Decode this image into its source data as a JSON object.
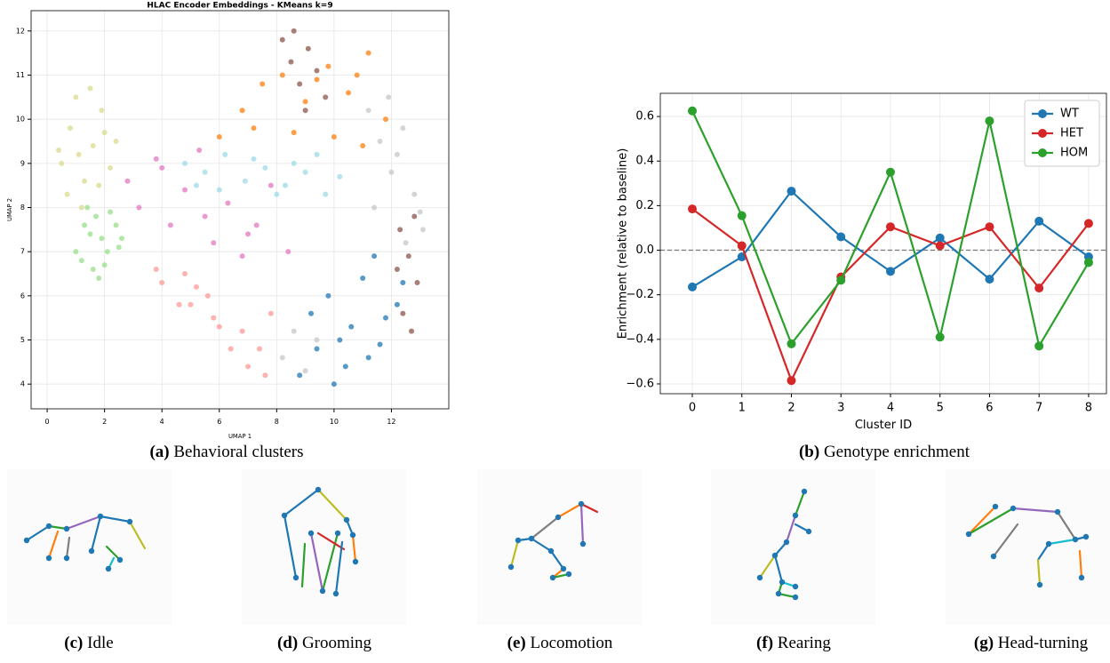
{
  "chart_data": [
    {
      "type": "scatter",
      "title": "HLAC Encoder Embeddings - KMeans k=9",
      "xlabel": "UMAP 1",
      "ylabel": "UMAP 2",
      "xlim": [
        -0.56,
        14.0
      ],
      "ylim": [
        3.44,
        12.46
      ],
      "xticks": [
        0,
        2,
        4,
        6,
        8,
        10,
        12
      ],
      "yticks": [
        4,
        5,
        6,
        7,
        8,
        9,
        10,
        11,
        12
      ],
      "grid": true,
      "series": [
        {
          "color": "#dbdb8d",
          "x": [
            0.5,
            0.8,
            1.0,
            1.3,
            1.6,
            1.9,
            2.2,
            0.7,
            1.1,
            1.5,
            2.0,
            0.4,
            1.2,
            1.8,
            2.4
          ],
          "y": [
            9.0,
            9.8,
            10.5,
            8.6,
            9.4,
            10.2,
            8.9,
            8.3,
            9.2,
            10.7,
            9.7,
            9.3,
            8.0,
            8.5,
            9.5
          ]
        },
        {
          "color": "#98df8a",
          "x": [
            1.0,
            1.3,
            1.6,
            1.9,
            2.2,
            2.5,
            1.2,
            1.5,
            1.8,
            2.1,
            2.4,
            1.4,
            1.7,
            2.0,
            2.6
          ],
          "y": [
            7.0,
            7.6,
            6.6,
            7.3,
            7.9,
            7.1,
            6.8,
            7.4,
            6.4,
            7.0,
            7.6,
            8.0,
            7.8,
            6.7,
            7.3
          ]
        },
        {
          "color": "#e377c2",
          "x": [
            2.8,
            3.2,
            3.8,
            4.3,
            4.8,
            5.3,
            5.8,
            6.3,
            6.8,
            7.3,
            7.8,
            8.4,
            4.0,
            5.5,
            7.0
          ],
          "y": [
            8.6,
            8.0,
            9.1,
            7.6,
            8.4,
            9.3,
            7.2,
            8.1,
            6.9,
            7.6,
            8.5,
            7.0,
            8.9,
            7.8,
            7.4
          ]
        },
        {
          "color": "#9edae5",
          "x": [
            4.8,
            5.5,
            6.2,
            6.9,
            7.6,
            8.3,
            9.0,
            9.7,
            6.0,
            7.2,
            8.6,
            10.2,
            5.2,
            8.0,
            9.4
          ],
          "y": [
            9.0,
            8.8,
            9.2,
            8.6,
            8.9,
            8.5,
            8.8,
            8.3,
            8.4,
            9.1,
            9.0,
            8.7,
            8.5,
            8.3,
            9.2
          ]
        },
        {
          "color": "#ff7f0e",
          "x": [
            6.0,
            6.8,
            7.5,
            8.2,
            9.0,
            9.8,
            10.5,
            11.2,
            11.8,
            7.2,
            8.6,
            10.0,
            11.0,
            9.4,
            10.8
          ],
          "y": [
            9.6,
            10.2,
            10.8,
            11.0,
            10.4,
            11.2,
            10.6,
            11.5,
            10.0,
            9.8,
            9.7,
            9.6,
            9.4,
            10.9,
            11.0
          ]
        },
        {
          "color": "#8c564b",
          "x": [
            8.2,
            8.5,
            8.8,
            9.1,
            9.4,
            9.7,
            8.6,
            9.0,
            12.3,
            12.6,
            12.9,
            12.4,
            12.7,
            12.2,
            12.8
          ],
          "y": [
            11.8,
            11.3,
            10.8,
            11.6,
            11.1,
            10.5,
            12.0,
            10.2,
            7.5,
            6.9,
            6.3,
            5.6,
            5.2,
            6.6,
            7.8
          ]
        },
        {
          "color": "#c7c7c7",
          "x": [
            11.2,
            11.6,
            12.0,
            12.4,
            12.8,
            13.1,
            11.4,
            11.9,
            12.5,
            8.2,
            8.6,
            9.0,
            9.4,
            12.2,
            13.0
          ],
          "y": [
            10.2,
            9.5,
            8.8,
            9.8,
            8.3,
            7.5,
            8.0,
            10.5,
            7.2,
            4.6,
            5.2,
            4.3,
            5.0,
            9.2,
            7.9
          ]
        },
        {
          "color": "#1f77b4",
          "x": [
            8.8,
            9.4,
            10.0,
            10.6,
            11.2,
            11.8,
            12.4,
            9.2,
            9.8,
            10.4,
            11.0,
            11.6,
            12.2,
            10.2,
            11.4
          ],
          "y": [
            4.2,
            4.8,
            4.0,
            5.3,
            4.6,
            5.5,
            6.3,
            5.6,
            6.0,
            4.4,
            6.4,
            4.9,
            5.8,
            5.0,
            6.9
          ]
        },
        {
          "color": "#ff9896",
          "x": [
            4.0,
            4.6,
            5.2,
            5.8,
            6.4,
            7.0,
            7.6,
            4.8,
            5.6,
            6.8,
            7.4,
            3.8,
            6.0,
            7.8,
            5.0
          ],
          "y": [
            6.3,
            5.8,
            6.2,
            5.5,
            4.8,
            4.4,
            4.2,
            6.5,
            6.0,
            5.2,
            4.8,
            6.6,
            5.3,
            5.6,
            5.8
          ]
        }
      ]
    },
    {
      "type": "line",
      "xlabel": "Cluster ID",
      "ylabel": "Enrichment (relative to baseline)",
      "x": [
        0,
        1,
        2,
        3,
        4,
        5,
        6,
        7,
        8
      ],
      "xlim": [
        -0.646,
        8.36
      ],
      "xticks": [
        0,
        1,
        2,
        3,
        4,
        5,
        6,
        7,
        8
      ],
      "ylim": [
        -0.644,
        0.704
      ],
      "yticks": [
        {
          "value": -0.6,
          "label": "−0.6"
        },
        {
          "value": -0.4,
          "label": "−0.4"
        },
        {
          "value": -0.2,
          "label": "−0.2"
        },
        {
          "value": 0,
          "label": "0.0"
        },
        0.2,
        0.4,
        0.6
      ],
      "grid": true,
      "hline": 0,
      "legend": "upper right",
      "series": [
        {
          "name": "WT",
          "color": "#1f77b4",
          "values": [
            -0.165,
            -0.03,
            0.265,
            0.06,
            -0.095,
            0.055,
            -0.13,
            0.13,
            -0.03
          ]
        },
        {
          "name": "HET",
          "color": "#d62728",
          "values": [
            0.185,
            0.02,
            -0.585,
            -0.12,
            0.105,
            0.02,
            0.105,
            -0.17,
            0.12
          ]
        },
        {
          "name": "HOM",
          "color": "#2ca02c",
          "values": [
            0.625,
            0.155,
            -0.42,
            -0.135,
            0.35,
            -0.39,
            0.58,
            -0.43,
            -0.055
          ]
        }
      ]
    }
  ],
  "captions": [
    {
      "label": "(a)",
      "text": "Behavioral clusters"
    },
    {
      "label": "(b)",
      "text": "Genotype enrichment"
    },
    {
      "label": "(c)",
      "text": "Idle"
    },
    {
      "label": "(d)",
      "text": "Grooming"
    },
    {
      "label": "(e)",
      "text": "Locomotion"
    },
    {
      "label": "(f)",
      "text": "Rearing"
    },
    {
      "label": "(g)",
      "text": "Head-turning"
    }
  ]
}
